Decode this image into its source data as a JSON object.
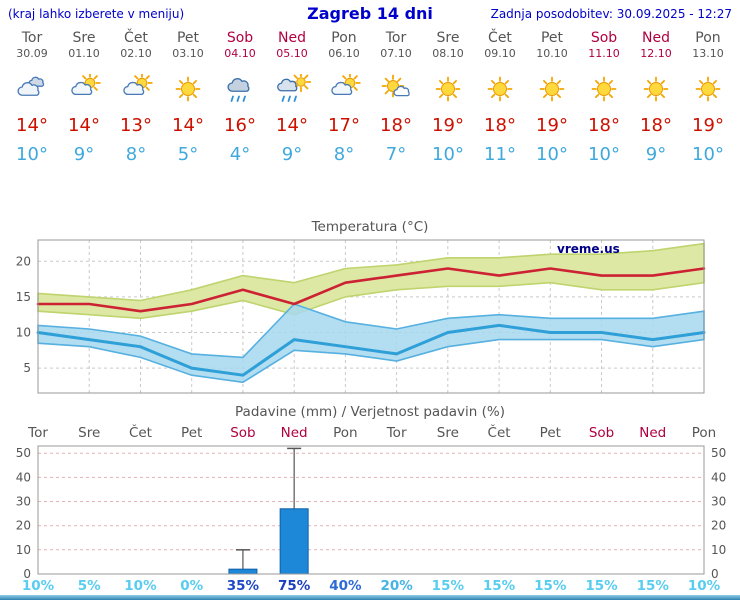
{
  "header": {
    "menu_hint": "(kraj lahko izberete v meniju)",
    "title": "Zagreb 14 dni",
    "last_updated": "Zadnja posodobitev: 30.09.2025 - 12:27"
  },
  "colors": {
    "link_blue": "#0000cc",
    "weekend_red": "#b00040",
    "high_temp_red": "#cc1100",
    "low_temp_blue": "#3fa9dd"
  },
  "forecast": {
    "days": [
      {
        "name": "Tor",
        "date": "30.09",
        "weekend": false,
        "icon": "cloudy",
        "high": "14°",
        "low": "10°"
      },
      {
        "name": "Sre",
        "date": "01.10",
        "weekend": false,
        "icon": "partly-cloudy",
        "high": "14°",
        "low": "9°"
      },
      {
        "name": "Čet",
        "date": "02.10",
        "weekend": false,
        "icon": "partly-cloudy",
        "high": "13°",
        "low": "8°"
      },
      {
        "name": "Pet",
        "date": "03.10",
        "weekend": false,
        "icon": "sunny",
        "high": "14°",
        "low": "5°"
      },
      {
        "name": "Sob",
        "date": "04.10",
        "weekend": true,
        "icon": "rain",
        "high": "16°",
        "low": "4°"
      },
      {
        "name": "Ned",
        "date": "05.10",
        "weekend": true,
        "icon": "rain-sun",
        "high": "14°",
        "low": "9°"
      },
      {
        "name": "Pon",
        "date": "06.10",
        "weekend": false,
        "icon": "partly-cloudy",
        "high": "17°",
        "low": "8°"
      },
      {
        "name": "Tor",
        "date": "07.10",
        "weekend": false,
        "icon": "mostly-sunny",
        "high": "18°",
        "low": "7°"
      },
      {
        "name": "Sre",
        "date": "08.10",
        "weekend": false,
        "icon": "sunny",
        "high": "19°",
        "low": "10°"
      },
      {
        "name": "Čet",
        "date": "09.10",
        "weekend": false,
        "icon": "sunny",
        "high": "18°",
        "low": "11°"
      },
      {
        "name": "Pet",
        "date": "10.10",
        "weekend": false,
        "icon": "sunny",
        "high": "19°",
        "low": "10°"
      },
      {
        "name": "Sob",
        "date": "11.10",
        "weekend": true,
        "icon": "sunny",
        "high": "18°",
        "low": "10°"
      },
      {
        "name": "Ned",
        "date": "12.10",
        "weekend": true,
        "icon": "sunny",
        "high": "18°",
        "low": "9°"
      },
      {
        "name": "Pon",
        "date": "13.10",
        "weekend": false,
        "icon": "sunny",
        "high": "19°",
        "low": "10°"
      }
    ]
  },
  "chart_data": [
    {
      "type": "line",
      "title": "Temperatura (°C)",
      "watermark": "vreme.us",
      "categories": [
        "30.09",
        "01.10",
        "02.10",
        "03.10",
        "04.10",
        "05.10",
        "06.10",
        "07.10",
        "08.10",
        "09.10",
        "10.10",
        "11.10",
        "12.10",
        "13.10"
      ],
      "ylim": [
        1.5,
        23
      ],
      "yticks": [
        5,
        10,
        15,
        20
      ],
      "series": [
        {
          "name": "max-temperature-line",
          "color": "#cc2233",
          "width": 2.6,
          "values": [
            14,
            14,
            13,
            14,
            16,
            14,
            17,
            18,
            19,
            18,
            19,
            18,
            18,
            19
          ]
        },
        {
          "name": "min-temperature-line",
          "color": "#2f9fd8",
          "width": 3,
          "values": [
            10,
            9,
            8,
            5,
            4,
            9,
            8,
            7,
            10,
            11,
            10,
            10,
            9,
            10
          ]
        }
      ],
      "bands": [
        {
          "name": "max-temperature-range-band",
          "fill": "#dde8a4",
          "edge": "#bfd36e",
          "opacity": 1,
          "upper": [
            15.5,
            15,
            14.5,
            16,
            18,
            17,
            19,
            19.5,
            20.5,
            20.5,
            21,
            21,
            21.5,
            22.5
          ],
          "lower": [
            13,
            12.5,
            12,
            13,
            14.5,
            12.5,
            15,
            16,
            16.5,
            16.5,
            17,
            16,
            16,
            17
          ]
        },
        {
          "name": "min-temperature-range-band",
          "fill": "#a6d8ef",
          "edge": "#56b0e0",
          "opacity": 0.85,
          "upper": [
            11,
            10.5,
            9.5,
            7,
            6.5,
            14,
            11.5,
            10.5,
            12,
            12.5,
            12,
            12,
            12,
            13
          ],
          "lower": [
            8.5,
            8,
            6.5,
            4,
            3,
            7.5,
            7,
            6,
            8,
            9,
            9,
            9,
            8,
            9
          ]
        }
      ],
      "grid": true,
      "legend": "none"
    },
    {
      "type": "bar",
      "title": "Padavine (mm) / Verjetnost padavin (%)",
      "categories": [
        "Tor",
        "Sre",
        "Čet",
        "Pet",
        "Sob",
        "Ned",
        "Pon",
        "Tor",
        "Sre",
        "Čet",
        "Pet",
        "Sob",
        "Ned",
        "Pon"
      ],
      "weekend": [
        false,
        false,
        false,
        false,
        true,
        true,
        false,
        false,
        false,
        false,
        false,
        true,
        true,
        false
      ],
      "precip_mm": [
        0,
        0,
        0,
        0,
        2,
        27,
        0,
        0,
        0,
        0,
        0,
        0,
        0,
        0
      ],
      "precip_max_mm": [
        0,
        0,
        0,
        0,
        10,
        52,
        0,
        0,
        0,
        0,
        0,
        0,
        0,
        0
      ],
      "probability_labels": [
        "10%",
        "5%",
        "10%",
        "0%",
        "35%",
        "75%",
        "40%",
        "20%",
        "15%",
        "15%",
        "15%",
        "15%",
        "15%",
        "10%"
      ],
      "probability_colors": [
        "#58cdf0",
        "#58cdf0",
        "#58cdf0",
        "#58cdf0",
        "#2148c8",
        "#1b3dc0",
        "#2e6bd6",
        "#47b4e6",
        "#58cdf0",
        "#58cdf0",
        "#58cdf0",
        "#58cdf0",
        "#58cdf0",
        "#58cdf0"
      ],
      "ylim": [
        0,
        53
      ],
      "yticks": [
        0,
        10,
        20,
        30,
        40,
        50
      ],
      "bar_color": "#1e88d8",
      "bar_edge": "#0e5fa8",
      "whisker_color": "#555555",
      "grid": true,
      "legend": "none"
    }
  ]
}
